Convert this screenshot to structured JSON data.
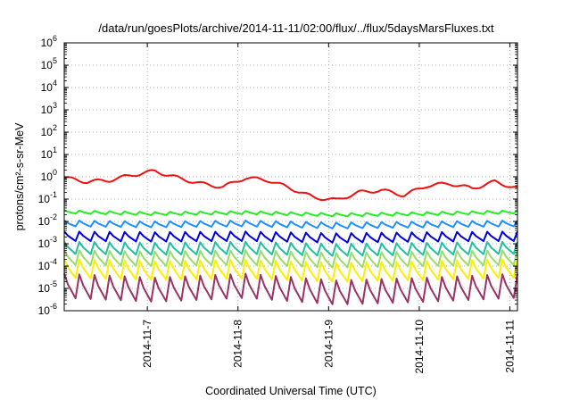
{
  "chart_data": {
    "type": "line",
    "title": "/data/run/goesPlots/archive/2014-11-11/02:00/flux/../flux/5daysMarsFluxes.txt",
    "xlabel": "Coordinated Universal Time (UTC)",
    "ylabel": "protons/cm²-s-sr-MeV",
    "yscale": "log",
    "ylim": [
      1e-06,
      1000000.0
    ],
    "yticks": [
      {
        "base": "10",
        "exp": "-6"
      },
      {
        "base": "10",
        "exp": "-5"
      },
      {
        "base": "10",
        "exp": "-4"
      },
      {
        "base": "10",
        "exp": "-3"
      },
      {
        "base": "10",
        "exp": "-2"
      },
      {
        "base": "10",
        "exp": "-1"
      },
      {
        "base": "10",
        "exp": "0"
      },
      {
        "base": "10",
        "exp": "1"
      },
      {
        "base": "10",
        "exp": "2"
      },
      {
        "base": "10",
        "exp": "3"
      },
      {
        "base": "10",
        "exp": "4"
      },
      {
        "base": "10",
        "exp": "5"
      },
      {
        "base": "10",
        "exp": "6"
      }
    ],
    "xlim": [
      "2014-11-06T02:00",
      "2014-11-11T02:00"
    ],
    "xticks": [
      "2014-11-7",
      "2014-11-8",
      "2014-11-9",
      "2014-11-10",
      "2014-11-11"
    ],
    "grid": true,
    "series": [
      {
        "color": "#ee1111",
        "x": [
          "2014-11-06T02:00",
          "2014-11-06T08:00",
          "2014-11-06T14:00",
          "2014-11-06T20:00",
          "2014-11-07T02:00",
          "2014-11-07T08:00",
          "2014-11-07T14:00",
          "2014-11-07T20:00",
          "2014-11-08T02:00",
          "2014-11-08T08:00",
          "2014-11-08T14:00",
          "2014-11-08T20:00",
          "2014-11-09T02:00",
          "2014-11-09T08:00",
          "2014-11-09T14:00",
          "2014-11-09T20:00",
          "2014-11-10T02:00",
          "2014-11-10T08:00",
          "2014-11-10T14:00",
          "2014-11-10T20:00",
          "2014-11-11T02:00"
        ],
        "y": [
          0.9,
          0.6,
          0.7,
          1.2,
          1.8,
          0.9,
          0.5,
          0.35,
          0.9,
          0.7,
          0.3,
          0.12,
          0.09,
          0.2,
          0.25,
          0.15,
          0.4,
          0.5,
          0.3,
          0.6,
          0.3
        ]
      },
      {
        "color": "#22ee22",
        "x": [
          "2014-11-06T02:00",
          "2014-11-07T02:00",
          "2014-11-08T02:00",
          "2014-11-09T02:00",
          "2014-11-10T02:00",
          "2014-11-11T02:00"
        ],
        "y": [
          0.03,
          0.025,
          0.028,
          0.022,
          0.025,
          0.03
        ]
      },
      {
        "color": "#1e90ff",
        "x": [
          "2014-11-06T02:00",
          "2014-11-07T02:00",
          "2014-11-08T02:00",
          "2014-11-09T02:00",
          "2014-11-10T02:00",
          "2014-11-11T02:00"
        ],
        "y": [
          0.01,
          0.009,
          0.01,
          0.008,
          0.009,
          0.01
        ]
      },
      {
        "color": "#0000dd",
        "x": [
          "2014-11-06T02:00",
          "2014-11-07T02:00",
          "2014-11-08T02:00",
          "2014-11-09T02:00",
          "2014-11-10T02:00",
          "2014-11-11T02:00"
        ],
        "y": [
          0.003,
          0.0028,
          0.003,
          0.0025,
          0.0028,
          0.003
        ]
      },
      {
        "color": "#20c0a0",
        "x": [
          "2014-11-06T02:00",
          "2014-11-07T02:00",
          "2014-11-08T02:00",
          "2014-11-09T02:00",
          "2014-11-10T02:00",
          "2014-11-11T02:00"
        ],
        "y": [
          0.001,
          0.0009,
          0.001,
          0.0008,
          0.0009,
          0.001
        ]
      },
      {
        "color": "#99dd66",
        "x": [
          "2014-11-06T02:00",
          "2014-11-07T02:00",
          "2014-11-08T02:00",
          "2014-11-09T02:00",
          "2014-11-10T02:00",
          "2014-11-11T02:00"
        ],
        "y": [
          0.0004,
          0.00035,
          0.0004,
          0.0003,
          0.00035,
          0.0004
        ]
      },
      {
        "color": "#ffee00",
        "x": [
          "2014-11-06T02:00",
          "2014-11-07T02:00",
          "2014-11-08T02:00",
          "2014-11-09T02:00",
          "2014-11-10T02:00",
          "2014-11-11T02:00"
        ],
        "y": [
          0.00015,
          0.00012,
          0.00014,
          0.0001,
          0.00012,
          0.00015
        ]
      },
      {
        "color": "#993366",
        "x": [
          "2014-11-06T02:00",
          "2014-11-07T02:00",
          "2014-11-08T02:00",
          "2014-11-09T02:00",
          "2014-11-10T02:00",
          "2014-11-11T02:00"
        ],
        "y": [
          3e-05,
          2e-05,
          3e-05,
          1.5e-05,
          2e-05,
          3e-05
        ]
      }
    ]
  }
}
